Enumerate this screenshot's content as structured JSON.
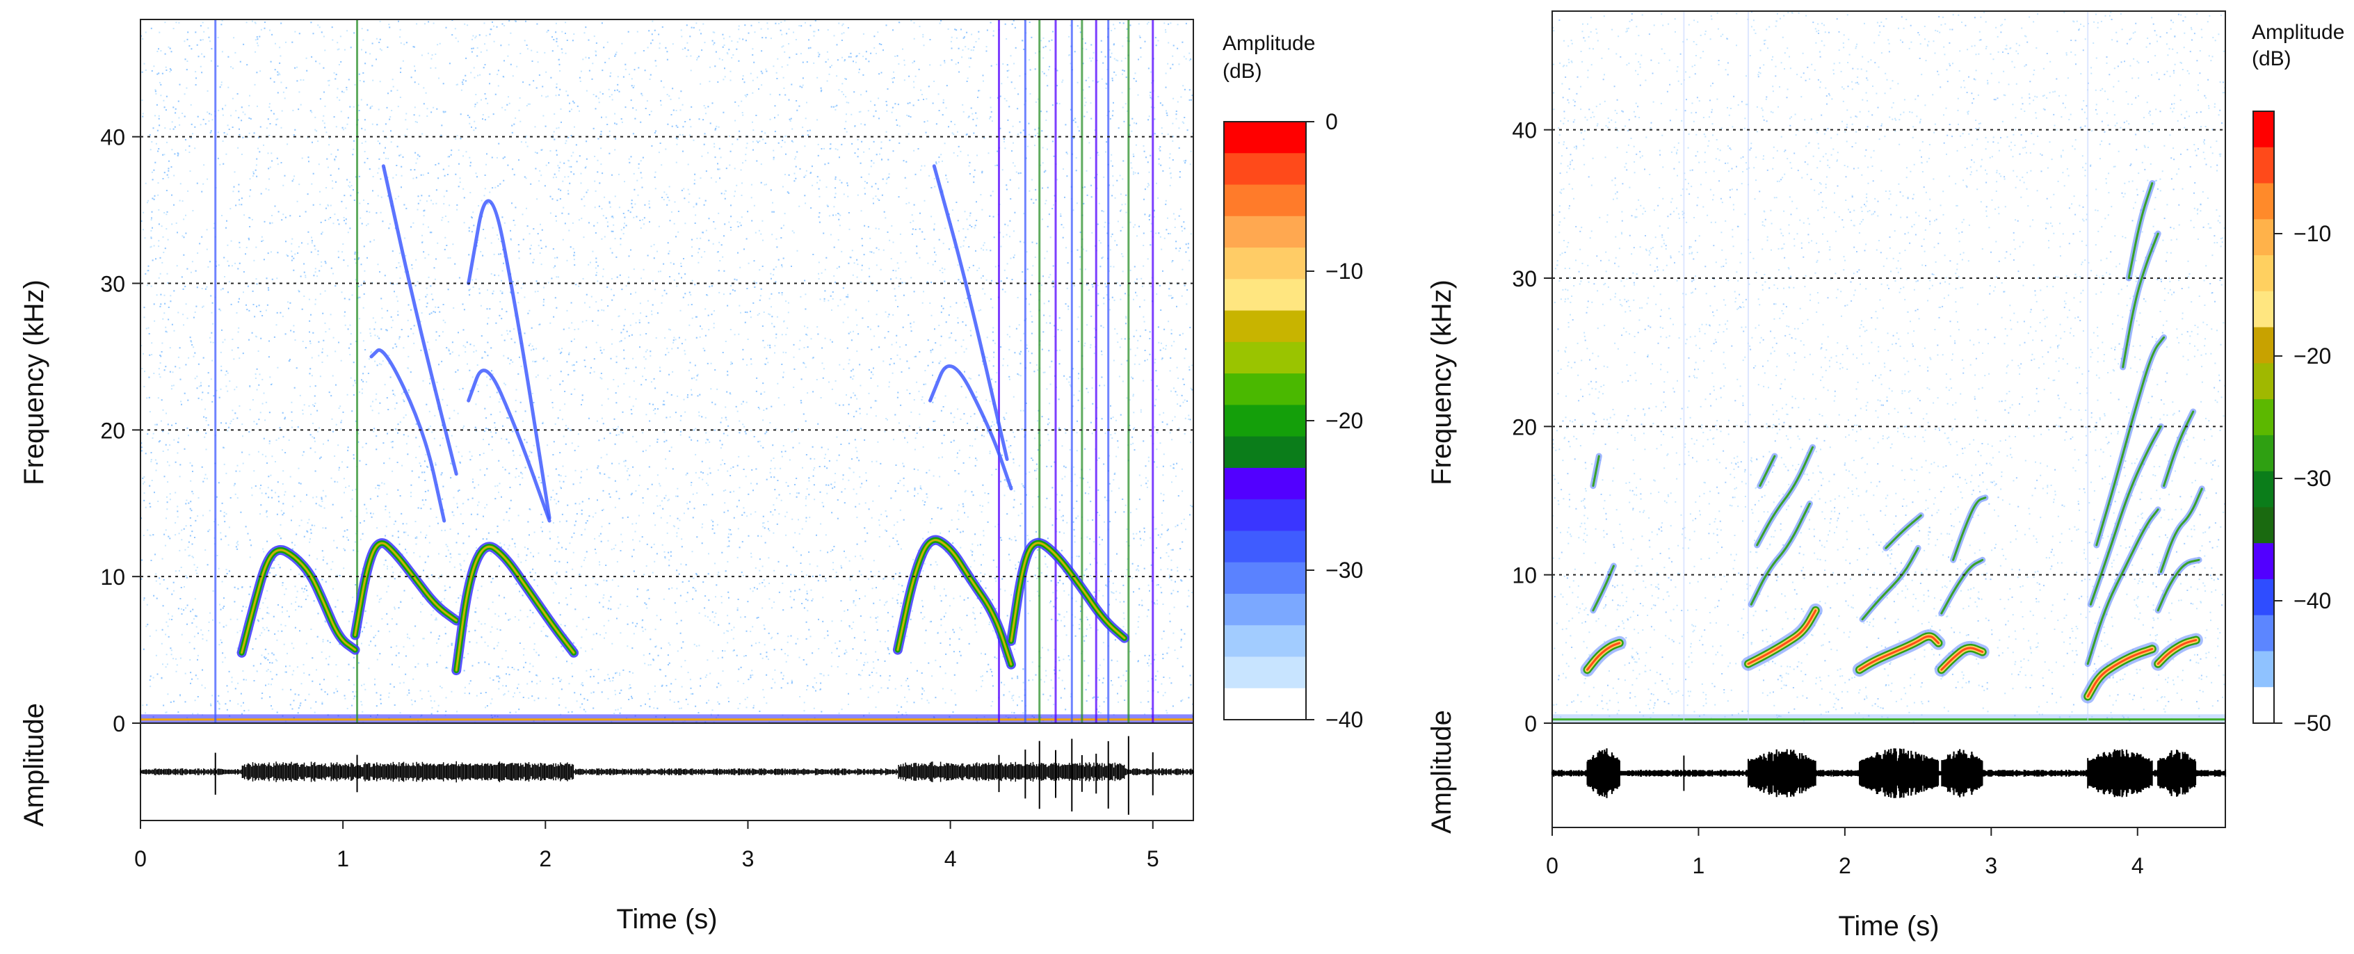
{
  "chart_data": [
    {
      "type": "heatmap",
      "subtype": "spectrogram",
      "xlabel": "Time (s)",
      "ylabel": "Frequency (kHz)",
      "oscillogram_label": "Amplitude",
      "xlim": [
        0,
        5.2
      ],
      "ylim": [
        0,
        48
      ],
      "x_ticks": [
        0,
        1,
        2,
        3,
        4,
        5
      ],
      "y_ticks": [
        0,
        10,
        20,
        30,
        40
      ],
      "grid": "horizontal dotted lines at 10, 20, 30, 40 kHz",
      "colorbar": {
        "title_line1": "Amplitude",
        "title_line2": "(dB)",
        "range": [
          -40,
          0
        ],
        "ticks": [
          0,
          -10,
          -20,
          -30,
          -40
        ],
        "tick_labels": [
          "0",
          "−10",
          "−20",
          "−30",
          "−40"
        ],
        "colors": [
          "#ff0000",
          "#ff4a1a",
          "#ff7b2a",
          "#ffa850",
          "#ffcc66",
          "#ffe680",
          "#c8b400",
          "#9ac400",
          "#4ab800",
          "#149f0a",
          "#0b7d1a",
          "#5200ff",
          "#3a36ff",
          "#3f5cff",
          "#5a82ff",
          "#7ba8ff",
          "#a2ccff",
          "#c8e4ff",
          "#ffffff"
        ]
      },
      "calls": [
        {
          "name": "call-1",
          "t": [
            0.5,
            0.56,
            0.62,
            0.68,
            0.76,
            0.84,
            0.9,
            0.98,
            1.06
          ],
          "f": [
            4.8,
            8.0,
            11.0,
            12.0,
            11.4,
            10.2,
            8.4,
            5.8,
            5.0
          ]
        },
        {
          "name": "call-2",
          "t": [
            1.06,
            1.12,
            1.18,
            1.26,
            1.36,
            1.46,
            1.56
          ],
          "f": [
            6.0,
            10.8,
            12.6,
            11.6,
            9.8,
            8.0,
            7.0
          ]
        },
        {
          "name": "call-3",
          "t": [
            1.56,
            1.62,
            1.7,
            1.8,
            1.92,
            2.04,
            2.14
          ],
          "f": [
            3.6,
            9.8,
            12.4,
            11.4,
            9.0,
            6.6,
            4.8
          ]
        },
        {
          "name": "call-4",
          "t": [
            3.74,
            3.82,
            3.9,
            4.0,
            4.1,
            4.22,
            4.3
          ],
          "f": [
            5.0,
            10.2,
            12.8,
            12.0,
            9.8,
            7.4,
            4.0
          ]
        },
        {
          "name": "call-5",
          "t": [
            4.3,
            4.36,
            4.42,
            4.52,
            4.64,
            4.76,
            4.86
          ],
          "f": [
            5.6,
            11.0,
            12.6,
            11.6,
            9.4,
            7.0,
            5.8
          ]
        }
      ],
      "harmonics": [
        {
          "t": [
            1.2,
            1.36,
            1.56
          ],
          "f": [
            38.0,
            28.0,
            17.0
          ]
        },
        {
          "t": [
            1.62,
            1.72,
            1.86,
            2.02
          ],
          "f": [
            30.0,
            37.8,
            28.0,
            14.0
          ]
        },
        {
          "t": [
            1.14,
            1.2,
            1.4,
            1.5
          ],
          "f": [
            25.0,
            25.8,
            20.0,
            13.8
          ]
        },
        {
          "t": [
            1.62,
            1.7,
            1.86,
            2.02
          ],
          "f": [
            22.0,
            25.0,
            20.0,
            13.8
          ]
        },
        {
          "t": [
            3.92,
            4.08,
            4.28
          ],
          "f": [
            38.0,
            30.0,
            18.0
          ]
        },
        {
          "t": [
            3.9,
            4.0,
            4.2,
            4.3
          ],
          "f": [
            22.0,
            25.4,
            20.0,
            16.0
          ]
        }
      ],
      "clicks_t": [
        0.37,
        1.07,
        4.24,
        4.37,
        4.44,
        4.52,
        4.6,
        4.65,
        4.72,
        4.78,
        4.88,
        5.0
      ]
    },
    {
      "type": "heatmap",
      "subtype": "spectrogram",
      "xlabel": "Time (s)",
      "ylabel": "Frequency (kHz)",
      "oscillogram_label": "Amplitude",
      "xlim": [
        0,
        4.6
      ],
      "ylim": [
        0,
        48
      ],
      "x_ticks": [
        0,
        1,
        2,
        3,
        4
      ],
      "y_ticks": [
        0,
        10,
        20,
        30,
        40
      ],
      "grid": "horizontal dotted lines at 10, 20, 30, 40 kHz",
      "colorbar": {
        "title_line1": "Amplitude",
        "title_line2": "(dB)",
        "range": [
          -50,
          0
        ],
        "ticks": [
          -10,
          -20,
          -30,
          -40,
          -50
        ],
        "tick_labels": [
          "−10",
          "−20",
          "−30",
          "−40",
          "−50"
        ],
        "colors": [
          "#ff0000",
          "#ff4a1a",
          "#ff8a2a",
          "#ffb24a",
          "#ffd060",
          "#ffe680",
          "#c8a200",
          "#a0b800",
          "#5cb800",
          "#2fa012",
          "#0b7d1a",
          "#1a6a10",
          "#5200ff",
          "#2f4dff",
          "#5c86ff",
          "#8fc2ff",
          "#ffffff"
        ]
      },
      "calls": [
        {
          "name": "call-1",
          "t": [
            0.24,
            0.32,
            0.4,
            0.46
          ],
          "f": [
            3.6,
            4.6,
            5.2,
            5.4
          ]
        },
        {
          "name": "call-2",
          "t": [
            1.34,
            1.46,
            1.6,
            1.72,
            1.8
          ],
          "f": [
            4.0,
            4.6,
            5.4,
            6.2,
            7.6
          ]
        },
        {
          "name": "call-3",
          "t": [
            2.1,
            2.2,
            2.34,
            2.48,
            2.58,
            2.64
          ],
          "f": [
            3.6,
            4.2,
            4.8,
            5.4,
            6.0,
            5.4
          ]
        },
        {
          "name": "call-4",
          "t": [
            2.66,
            2.74,
            2.84,
            2.94
          ],
          "f": [
            3.6,
            4.4,
            5.2,
            4.8
          ]
        },
        {
          "name": "call-5",
          "t": [
            3.66,
            3.74,
            3.86,
            3.98,
            4.1
          ],
          "f": [
            1.8,
            3.2,
            4.0,
            4.6,
            5.0
          ]
        },
        {
          "name": "call-6",
          "t": [
            4.14,
            4.22,
            4.32,
            4.4
          ],
          "f": [
            4.0,
            4.8,
            5.4,
            5.6
          ]
        }
      ],
      "harmonics": [
        {
          "t": [
            0.28,
            0.36,
            0.42
          ],
          "f": [
            7.6,
            9.2,
            10.6
          ]
        },
        {
          "t": [
            0.28,
            0.32
          ],
          "f": [
            16.0,
            18.0
          ]
        },
        {
          "t": [
            1.36,
            1.48,
            1.62,
            1.76
          ],
          "f": [
            8.0,
            10.4,
            12.0,
            14.8
          ]
        },
        {
          "t": [
            1.4,
            1.52,
            1.66,
            1.78
          ],
          "f": [
            12.0,
            14.2,
            16.0,
            18.6
          ]
        },
        {
          "t": [
            1.42,
            1.52
          ],
          "f": [
            16.0,
            18.0
          ]
        },
        {
          "t": [
            2.12,
            2.24,
            2.4,
            2.5
          ],
          "f": [
            7.0,
            8.4,
            10.0,
            11.8
          ]
        },
        {
          "t": [
            2.66,
            2.76,
            2.86,
            2.94
          ],
          "f": [
            7.4,
            9.2,
            10.6,
            11.0
          ]
        },
        {
          "t": [
            2.74,
            2.82,
            2.9,
            2.96
          ],
          "f": [
            11.0,
            13.2,
            15.0,
            15.2
          ]
        },
        {
          "t": [
            2.28,
            2.4,
            2.52
          ],
          "f": [
            11.8,
            13.0,
            14.0
          ]
        },
        {
          "t": [
            3.66,
            3.78,
            3.92,
            4.06,
            4.14
          ],
          "f": [
            4.0,
            7.8,
            10.6,
            13.4,
            14.4
          ]
        },
        {
          "t": [
            3.68,
            3.8,
            3.94,
            4.08,
            4.16
          ],
          "f": [
            8.0,
            11.4,
            15.6,
            18.6,
            20.0
          ]
        },
        {
          "t": [
            3.72,
            3.84,
            3.98,
            4.1,
            4.18
          ],
          "f": [
            12.0,
            16.0,
            21.0,
            25.0,
            26.0
          ]
        },
        {
          "t": [
            3.9,
            3.98,
            4.06,
            4.14
          ],
          "f": [
            24.0,
            28.4,
            31.0,
            33.0
          ]
        },
        {
          "t": [
            3.94,
            4.02,
            4.1
          ],
          "f": [
            30.0,
            34.0,
            36.4
          ]
        },
        {
          "t": [
            4.14,
            4.22,
            4.32,
            4.42
          ],
          "f": [
            7.6,
            9.4,
            10.8,
            11.0
          ]
        },
        {
          "t": [
            4.16,
            4.26,
            4.36,
            4.44
          ],
          "f": [
            10.2,
            13.0,
            14.0,
            15.8
          ]
        },
        {
          "t": [
            4.18,
            4.28,
            4.38
          ],
          "f": [
            16.0,
            19.0,
            21.0
          ]
        }
      ],
      "clicks_t": [
        0.9,
        1.34,
        3.66
      ]
    }
  ]
}
